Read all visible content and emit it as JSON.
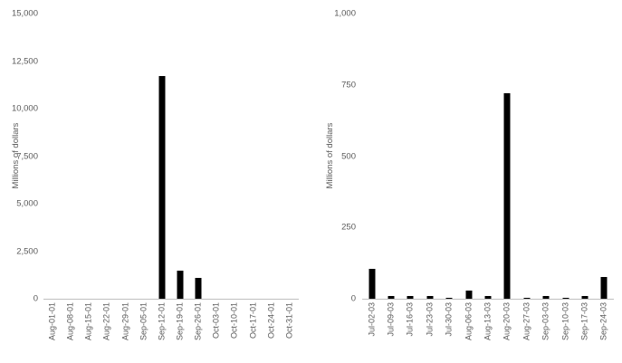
{
  "figure": {
    "background": "#ffffff",
    "text_color": "#595959",
    "axis_line_color": "#bfbfbf"
  },
  "chart_data": [
    {
      "type": "bar",
      "title": "",
      "xlabel": "",
      "ylabel": "Millions of dollars",
      "ylim": [
        0,
        15000
      ],
      "grid": false,
      "legend": false,
      "bar_color": "#000000",
      "yticks": [
        0,
        2500,
        5000,
        7500,
        10000,
        12500,
        15000
      ],
      "ytick_labels": [
        "0",
        "2,500",
        "5,000",
        "7,500",
        "10,000",
        "12,500",
        "15,000"
      ],
      "categories": [
        "Aug-01-01",
        "Aug-08-01",
        "Aug-15-01",
        "Aug-22-01",
        "Aug-29-01",
        "Sep-05-01",
        "Sep-12-01",
        "Sep-19-01",
        "Sep-26-01",
        "Oct-03-01",
        "Oct-10-01",
        "Oct-17-01",
        "Oct-24-01",
        "Oct-31-01"
      ],
      "values": [
        0,
        0,
        0,
        0,
        0,
        0,
        11700,
        1500,
        1100,
        0,
        0,
        0,
        0,
        0
      ]
    },
    {
      "type": "bar",
      "title": "",
      "xlabel": "",
      "ylabel": "Millions of dollars",
      "ylim": [
        0,
        1000
      ],
      "grid": false,
      "legend": false,
      "bar_color": "#000000",
      "yticks": [
        0,
        250,
        500,
        750,
        1000
      ],
      "ytick_labels": [
        "0",
        "250",
        "500",
        "750",
        "1,000"
      ],
      "categories": [
        "Jul-02-03",
        "Jul-09-03",
        "Jul-16-03",
        "Jul-23-03",
        "Jul-30-03",
        "Aug-06-03",
        "Aug-13-03",
        "Aug-20-03",
        "Aug-27-03",
        "Sep-03-03",
        "Sep-10-03",
        "Sep-17-03",
        "Sep-24-03"
      ],
      "values": [
        105,
        10,
        8,
        10,
        4,
        28,
        10,
        720,
        3,
        10,
        3,
        8,
        75
      ]
    }
  ]
}
